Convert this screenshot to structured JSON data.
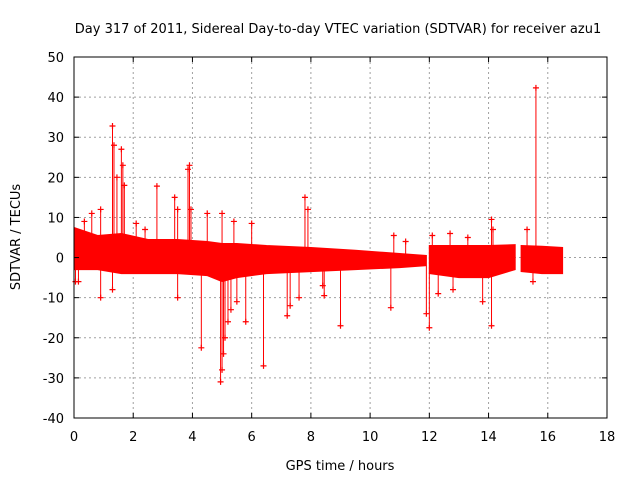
{
  "chart_data": {
    "type": "scatter",
    "title": "Day 317 of 2011, Sidereal Day-to-day VTEC variation (SDTVAR) for receiver azu1",
    "xlabel": "GPS time / hours",
    "ylabel": "SDTVAR / TECUs",
    "xlim": [
      0,
      18
    ],
    "ylim": [
      -40,
      50
    ],
    "xticks": [
      "0",
      "2",
      "4",
      "6",
      "8",
      "10",
      "12",
      "14",
      "16",
      "18"
    ],
    "yticks": [
      "-40",
      "-30",
      "-20",
      "-10",
      "0",
      "10",
      "20",
      "30",
      "40",
      "50"
    ],
    "grid": true,
    "marker": "+",
    "color": "#ff0000",
    "band_segments": [
      {
        "x": [
          0.0,
          0.8,
          1.6,
          2.5,
          3.5,
          4.5,
          5.0,
          5.5,
          6.5,
          8.0,
          9.5,
          11.0,
          11.9
        ],
        "upper": [
          7.5,
          5.5,
          6.0,
          4.5,
          4.5,
          4.0,
          3.5,
          3.5,
          3.0,
          2.5,
          1.8,
          1.0,
          0.5
        ],
        "lower": [
          -3.0,
          -3.0,
          -4.0,
          -4.0,
          -4.0,
          -4.5,
          -6.0,
          -5.0,
          -4.0,
          -3.5,
          -3.0,
          -2.5,
          -2.0
        ]
      },
      {
        "x": [
          12.0,
          13.0,
          14.0,
          14.9
        ],
        "upper": [
          3.0,
          3.0,
          3.0,
          3.2
        ],
        "lower": [
          -4.0,
          -5.0,
          -5.0,
          -3.0
        ]
      },
      {
        "x": [
          15.1,
          15.8,
          16.5
        ],
        "upper": [
          3.0,
          2.8,
          2.5
        ],
        "lower": [
          -3.5,
          -4.0,
          -4.0
        ]
      }
    ],
    "spikes": [
      {
        "x": 0.35,
        "y": 9.0
      },
      {
        "x": 0.6,
        "y": 11.0
      },
      {
        "x": 0.9,
        "y": 12.0
      },
      {
        "x": 1.3,
        "y": 32.8
      },
      {
        "x": 1.35,
        "y": 28.0
      },
      {
        "x": 1.45,
        "y": 20.0
      },
      {
        "x": 1.6,
        "y": 27.0
      },
      {
        "x": 1.65,
        "y": 23.0
      },
      {
        "x": 1.7,
        "y": 18.0
      },
      {
        "x": 2.1,
        "y": 8.5
      },
      {
        "x": 2.4,
        "y": 7.0
      },
      {
        "x": 2.8,
        "y": 17.8
      },
      {
        "x": 3.4,
        "y": 15.0
      },
      {
        "x": 3.5,
        "y": 12.0
      },
      {
        "x": 3.85,
        "y": 22.0
      },
      {
        "x": 3.9,
        "y": 23.0
      },
      {
        "x": 3.95,
        "y": 12.0
      },
      {
        "x": 4.5,
        "y": 11.0
      },
      {
        "x": 5.0,
        "y": 11.0
      },
      {
        "x": 5.4,
        "y": 9.0
      },
      {
        "x": 6.0,
        "y": 8.5
      },
      {
        "x": 7.8,
        "y": 15.0
      },
      {
        "x": 7.9,
        "y": 12.0
      },
      {
        "x": 10.8,
        "y": 5.5
      },
      {
        "x": 11.2,
        "y": 4.0
      },
      {
        "x": 12.1,
        "y": 5.5
      },
      {
        "x": 12.7,
        "y": 6.0
      },
      {
        "x": 13.3,
        "y": 5.0
      },
      {
        "x": 14.1,
        "y": 9.5
      },
      {
        "x": 14.15,
        "y": 7.0
      },
      {
        "x": 15.3,
        "y": 7.0
      },
      {
        "x": 15.6,
        "y": 42.3
      },
      {
        "x": 0.05,
        "y": -6.0
      },
      {
        "x": 0.15,
        "y": -6.0
      },
      {
        "x": 0.9,
        "y": -10.0
      },
      {
        "x": 1.3,
        "y": -8.0
      },
      {
        "x": 3.5,
        "y": -10.0
      },
      {
        "x": 4.3,
        "y": -22.5
      },
      {
        "x": 4.95,
        "y": -31.0
      },
      {
        "x": 5.0,
        "y": -28.0
      },
      {
        "x": 5.05,
        "y": -24.0
      },
      {
        "x": 5.1,
        "y": -20.0
      },
      {
        "x": 5.2,
        "y": -16.0
      },
      {
        "x": 5.3,
        "y": -13.0
      },
      {
        "x": 5.5,
        "y": -11.0
      },
      {
        "x": 5.8,
        "y": -16.0
      },
      {
        "x": 6.4,
        "y": -27.0
      },
      {
        "x": 7.2,
        "y": -14.5
      },
      {
        "x": 7.3,
        "y": -12.0
      },
      {
        "x": 7.6,
        "y": -10.0
      },
      {
        "x": 8.4,
        "y": -7.0
      },
      {
        "x": 8.45,
        "y": -9.5
      },
      {
        "x": 9.0,
        "y": -17.0
      },
      {
        "x": 10.7,
        "y": -12.5
      },
      {
        "x": 11.9,
        "y": -14.0
      },
      {
        "x": 12.0,
        "y": -17.5
      },
      {
        "x": 12.3,
        "y": -9.0
      },
      {
        "x": 12.8,
        "y": -8.0
      },
      {
        "x": 13.8,
        "y": -11.0
      },
      {
        "x": 14.1,
        "y": -17.0
      },
      {
        "x": 15.5,
        "y": -6.0
      }
    ]
  }
}
